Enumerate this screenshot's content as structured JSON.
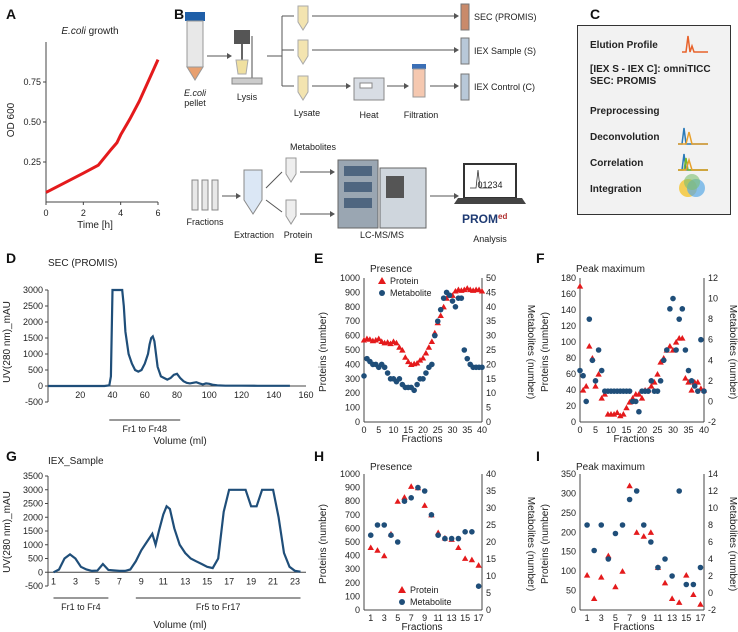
{
  "panels": {
    "A": {
      "letter": "A",
      "title_italic": "E.coli",
      "title_rest": " growth",
      "ylabel": "OD 600",
      "xlabel": "Time [h]",
      "xticks": [
        "0",
        "2",
        "4",
        "6"
      ],
      "yticks": [
        "0.25",
        "0.50",
        "0.75"
      ]
    },
    "B": {
      "letter": "B",
      "pellet_italic": "E.coli",
      "pellet": "pellet",
      "lysis": "Lysis",
      "lysate": "Lysate",
      "heat": "Heat",
      "filtration": "Filtration",
      "sec": "SEC (PROMIS)",
      "iex_s": "IEX Sample (S)",
      "iex_c": "IEX Control (C)",
      "metabolites": "Metabolites",
      "fractions": "Fractions",
      "extraction": "Extraction",
      "protein": "Protein",
      "lcms": "LC-MS/MS",
      "analysis": "Analysis",
      "screen_text": "01234",
      "logo_main": "PROM",
      "logo_sup": "ed"
    },
    "C": {
      "letter": "C",
      "items": [
        {
          "label": "Elution Profile"
        },
        {
          "label": "[IEX S - IEX C]: omniTICC"
        },
        {
          "label": "SEC: PROMIS"
        },
        {
          "label": "Preprocessing"
        },
        {
          "label": "Deconvolution"
        },
        {
          "label": "Correlation"
        },
        {
          "label": "Integration"
        }
      ]
    },
    "D": {
      "letter": "D",
      "title": "SEC (PROMIS)",
      "ylabel": "UV(280 nm)_mAU",
      "xlabel": "Volume (ml)",
      "bracket": "Fr1 to Fr48",
      "xticks": [
        "20",
        "40",
        "60",
        "80",
        "100",
        "120",
        "140",
        "160"
      ],
      "yticks": [
        "-500",
        "0",
        "500",
        "1000",
        "1500",
        "2000",
        "2500",
        "3000"
      ]
    },
    "E": {
      "letter": "E",
      "title": "Presence",
      "ylabel_left": "Proteins (number)",
      "ylabel_right": "Metabolites (number)",
      "xlabel": "Fractions",
      "legend_protein": "Protein",
      "legend_metabolite": "Metabolite",
      "xticks": [
        "0",
        "5",
        "10",
        "15",
        "20",
        "25",
        "30",
        "35",
        "40"
      ],
      "yticks_left": [
        "0",
        "100",
        "200",
        "300",
        "400",
        "500",
        "600",
        "700",
        "800",
        "900",
        "1000"
      ],
      "yticks_right": [
        "0",
        "5",
        "10",
        "15",
        "20",
        "25",
        "30",
        "35",
        "40",
        "45",
        "50"
      ]
    },
    "F": {
      "letter": "F",
      "title": "Peak maximum",
      "ylabel_left": "Proteins (number)",
      "ylabel_right": "Metabolites (number)",
      "xlabel": "Fractions",
      "xticks": [
        "0",
        "5",
        "10",
        "15",
        "20",
        "25",
        "30",
        "35",
        "40"
      ],
      "yticks_left": [
        "0",
        "20",
        "40",
        "60",
        "80",
        "100",
        "120",
        "140",
        "160",
        "180"
      ],
      "yticks_right": [
        "-2",
        "0",
        "2",
        "4",
        "6",
        "8",
        "10",
        "12"
      ]
    },
    "G": {
      "letter": "G",
      "title": "IEX_Sample",
      "ylabel": "UV(280 nm)_mAU",
      "xlabel": "Volume (ml)",
      "bracket1": "Fr1 to Fr4",
      "bracket2": "Fr5 to Fr17",
      "xticks": [
        "1",
        "3",
        "5",
        "7",
        "9",
        "11",
        "13",
        "15",
        "17",
        "19",
        "21",
        "23"
      ],
      "yticks": [
        "-500",
        "0",
        "500",
        "1000",
        "1500",
        "2000",
        "2500",
        "3000",
        "3500"
      ]
    },
    "H": {
      "letter": "H",
      "title": "Presence",
      "ylabel_left": "Proteins (number)",
      "ylabel_right": "Metabolites (number)",
      "xlabel": "Fractions",
      "legend_protein": "Protein",
      "legend_metabolite": "Metabolite",
      "xticks": [
        "1",
        "3",
        "5",
        "7",
        "9",
        "11",
        "13",
        "15",
        "17"
      ],
      "yticks_left": [
        "0",
        "100",
        "200",
        "300",
        "400",
        "500",
        "600",
        "700",
        "800",
        "900",
        "1000"
      ],
      "yticks_right": [
        "0",
        "5",
        "10",
        "15",
        "20",
        "25",
        "30",
        "35",
        "40"
      ]
    },
    "I": {
      "letter": "I",
      "title": "Peak maximum",
      "ylabel_left": "Proteins (number)",
      "ylabel_right": "Metabolites (number)",
      "xlabel": "Fractions",
      "xticks": [
        "1",
        "3",
        "5",
        "7",
        "9",
        "11",
        "13",
        "15",
        "17"
      ],
      "yticks_left": [
        "0",
        "50",
        "100",
        "150",
        "200",
        "250",
        "300",
        "350"
      ],
      "yticks_right": [
        "-2",
        "0",
        "2",
        "4",
        "6",
        "8",
        "10",
        "12",
        "14"
      ]
    }
  },
  "colors": {
    "red": "#e41a1c",
    "blue": "#1f4e79",
    "line": "#1f4e79"
  },
  "chart_data": [
    {
      "id": "A",
      "type": "line",
      "x": [
        0,
        1,
        2,
        2.8,
        3.5,
        3.8,
        4,
        4.5,
        5,
        5.5,
        6
      ],
      "y": [
        0.06,
        0.12,
        0.18,
        0.23,
        0.33,
        0.37,
        0.42,
        0.52,
        0.63,
        0.76,
        0.89
      ],
      "xlim": [
        0,
        6
      ],
      "ylim": [
        0,
        1.0
      ]
    },
    {
      "id": "D",
      "type": "line",
      "x": [
        0,
        10,
        20,
        30,
        35,
        38,
        39,
        40,
        41,
        42,
        44,
        46,
        47,
        48,
        50,
        52,
        54,
        56,
        58,
        60,
        62,
        63,
        64,
        65,
        66,
        67,
        68,
        70,
        72,
        74,
        76,
        78,
        80,
        82,
        84,
        86,
        88,
        90,
        92,
        94,
        96,
        98,
        100,
        102,
        105,
        110,
        120,
        130,
        140,
        150
      ],
      "y": [
        0,
        0,
        0,
        0,
        0,
        20,
        300,
        3000,
        3000,
        3000,
        3000,
        3000,
        2500,
        1700,
        1000,
        700,
        500,
        450,
        500,
        700,
        1000,
        1300,
        1500,
        1550,
        1400,
        1000,
        600,
        300,
        250,
        200,
        250,
        350,
        380,
        250,
        150,
        100,
        80,
        100,
        120,
        80,
        50,
        80,
        70,
        40,
        20,
        10,
        10,
        5,
        5,
        5
      ],
      "xlim": [
        0,
        160
      ],
      "ylim": [
        -500,
        3000
      ]
    },
    {
      "id": "E",
      "type": "scatter",
      "x": [
        0,
        1,
        2,
        3,
        4,
        5,
        6,
        7,
        8,
        9,
        10,
        11,
        12,
        13,
        14,
        15,
        16,
        17,
        18,
        19,
        20,
        21,
        22,
        23,
        24,
        25,
        26,
        27,
        28,
        29,
        30,
        31,
        32,
        33,
        34,
        35,
        36,
        37,
        38,
        39,
        40
      ],
      "series": [
        {
          "name": "Protein",
          "axis": "left",
          "values": [
            570,
            580,
            575,
            565,
            570,
            580,
            560,
            550,
            555,
            545,
            560,
            550,
            520,
            500,
            450,
            420,
            400,
            405,
            410,
            430,
            445,
            480,
            520,
            560,
            620,
            690,
            740,
            800,
            860,
            880,
            880,
            910,
            920,
            915,
            920,
            930,
            920,
            915,
            920,
            920,
            910
          ]
        },
        {
          "name": "Metabolite",
          "axis": "right",
          "values": [
            16,
            22,
            21,
            20,
            20,
            19,
            20,
            19,
            17,
            15,
            15,
            14,
            15,
            13,
            12,
            12,
            12,
            11,
            13,
            15,
            15,
            17,
            19,
            20,
            30,
            35,
            39,
            43,
            45,
            44,
            42,
            40,
            43,
            43,
            25,
            22,
            20,
            19,
            19,
            19,
            19
          ]
        }
      ]
    },
    {
      "id": "F",
      "type": "scatter",
      "x": [
        0,
        1,
        2,
        3,
        4,
        5,
        6,
        7,
        8,
        9,
        10,
        11,
        12,
        13,
        14,
        15,
        16,
        17,
        18,
        19,
        20,
        21,
        22,
        23,
        24,
        25,
        26,
        27,
        28,
        29,
        30,
        31,
        32,
        33,
        34,
        35,
        36,
        37,
        38,
        39,
        40
      ],
      "series": [
        {
          "name": "Protein",
          "axis": "left",
          "values": [
            170,
            40,
            45,
            95,
            80,
            45,
            60,
            30,
            35,
            10,
            10,
            10,
            12,
            8,
            10,
            18,
            25,
            30,
            35,
            35,
            30,
            40,
            40,
            45,
            50,
            60,
            75,
            80,
            90,
            95,
            90,
            100,
            105,
            105,
            55,
            50,
            40,
            50,
            50,
            42,
            40
          ]
        },
        {
          "name": "Metabolite",
          "axis": "right",
          "values": [
            3,
            2.5,
            0,
            8,
            4,
            2,
            5,
            3,
            1,
            1,
            1,
            1,
            1,
            1,
            1,
            1,
            1,
            0,
            0,
            -1,
            1,
            1,
            1,
            2,
            1,
            1,
            2,
            4,
            5,
            9,
            10,
            5,
            8,
            9,
            5,
            3,
            2,
            1.5,
            1,
            6,
            1
          ]
        }
      ]
    },
    {
      "id": "G",
      "type": "line",
      "x": [
        1,
        1.5,
        2,
        2.5,
        3,
        3.5,
        4,
        4.5,
        5,
        5.5,
        6,
        7,
        7.5,
        8,
        8.5,
        9,
        9.5,
        10,
        10.3,
        10.6,
        11,
        11.3,
        11.6,
        12,
        12.5,
        13,
        13.5,
        14,
        14.5,
        15,
        15.5,
        16,
        16.5,
        17,
        17.5,
        18,
        18.5,
        19,
        19.5,
        20,
        20.5,
        21,
        21.5,
        22,
        22.5,
        23,
        23.5
      ],
      "y": [
        0,
        100,
        500,
        650,
        500,
        200,
        100,
        50,
        60,
        300,
        80,
        50,
        50,
        100,
        400,
        800,
        1100,
        1400,
        1000,
        1500,
        2100,
        2400,
        2300,
        1600,
        1000,
        700,
        500,
        400,
        300,
        200,
        150,
        500,
        2200,
        3000,
        3000,
        3000,
        3000,
        2400,
        2400,
        3000,
        3000,
        3000,
        2000,
        700,
        200,
        50,
        20
      ],
      "xlim": [
        0.5,
        24
      ],
      "ylim": [
        -500,
        3500
      ]
    },
    {
      "id": "H",
      "type": "scatter",
      "x": [
        1,
        2,
        3,
        4,
        5,
        6,
        7,
        8,
        9,
        10,
        11,
        12,
        13,
        14,
        15,
        16,
        17
      ],
      "series": [
        {
          "name": "Protein",
          "axis": "left",
          "values": [
            460,
            440,
            400,
            560,
            800,
            830,
            910,
            900,
            770,
            700,
            570,
            530,
            520,
            460,
            380,
            370,
            330
          ]
        },
        {
          "name": "Metabolite",
          "axis": "right",
          "values": [
            22,
            25,
            25,
            22,
            20,
            32,
            33,
            36,
            35,
            28,
            22,
            21,
            21,
            21,
            23,
            23,
            7
          ]
        }
      ]
    },
    {
      "id": "I",
      "type": "scatter",
      "x": [
        1,
        2,
        3,
        4,
        5,
        6,
        7,
        8,
        9,
        10,
        11,
        12,
        13,
        14,
        15,
        16,
        17
      ],
      "series": [
        {
          "name": "Protein",
          "axis": "left",
          "values": [
            90,
            30,
            85,
            140,
            60,
            100,
            320,
            200,
            190,
            200,
            110,
            70,
            30,
            20,
            90,
            40,
            15
          ]
        },
        {
          "name": "Metabolite",
          "axis": "right",
          "values": [
            8,
            5,
            8,
            4,
            7,
            8,
            11,
            12,
            8,
            6,
            3,
            4,
            2,
            12,
            1,
            1,
            3
          ]
        }
      ]
    }
  ]
}
